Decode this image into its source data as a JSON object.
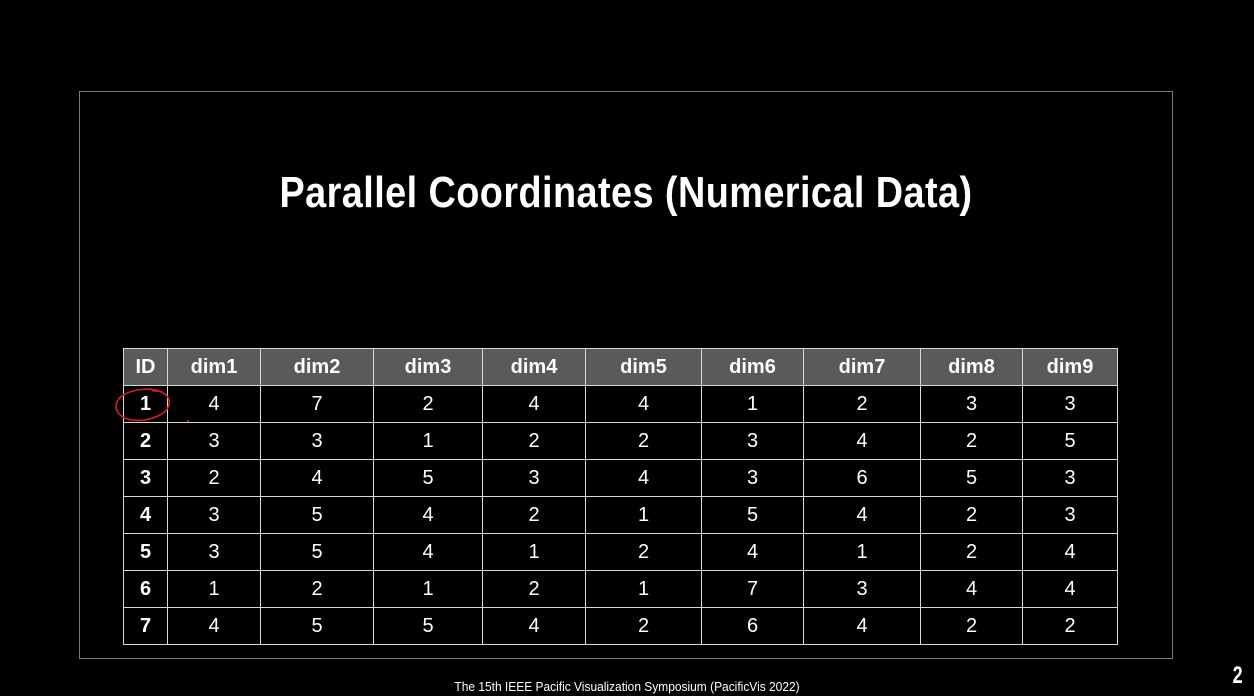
{
  "slide": {
    "title": "Parallel Coordinates (Numerical Data)",
    "footer": "The 15th IEEE Pacific Visualization Symposium (PacificVis 2022)",
    "page_number": "2"
  },
  "table": {
    "headers": [
      "ID",
      "dim1",
      "dim2",
      "dim3",
      "dim4",
      "dim5",
      "dim6",
      "dim7",
      "dim8",
      "dim9"
    ],
    "rows": [
      [
        "1",
        "4",
        "7",
        "2",
        "4",
        "4",
        "1",
        "2",
        "3",
        "3"
      ],
      [
        "2",
        "3",
        "3",
        "1",
        "2",
        "2",
        "3",
        "4",
        "2",
        "5"
      ],
      [
        "3",
        "2",
        "4",
        "5",
        "3",
        "4",
        "3",
        "6",
        "5",
        "3"
      ],
      [
        "4",
        "3",
        "5",
        "4",
        "2",
        "1",
        "5",
        "4",
        "2",
        "3"
      ],
      [
        "5",
        "3",
        "5",
        "4",
        "1",
        "2",
        "4",
        "1",
        "2",
        "4"
      ],
      [
        "6",
        "1",
        "2",
        "1",
        "2",
        "1",
        "7",
        "3",
        "4",
        "4"
      ],
      [
        "7",
        "4",
        "5",
        "5",
        "4",
        "2",
        "6",
        "4",
        "2",
        "2"
      ]
    ]
  },
  "annotation": {
    "color": "#d0202a",
    "shape": "hand-drawn-circle"
  },
  "colors": {
    "background": "#000000",
    "header_fill": "#5a5a5a",
    "grid": "#d8d8d8",
    "text": "#ffffff"
  }
}
